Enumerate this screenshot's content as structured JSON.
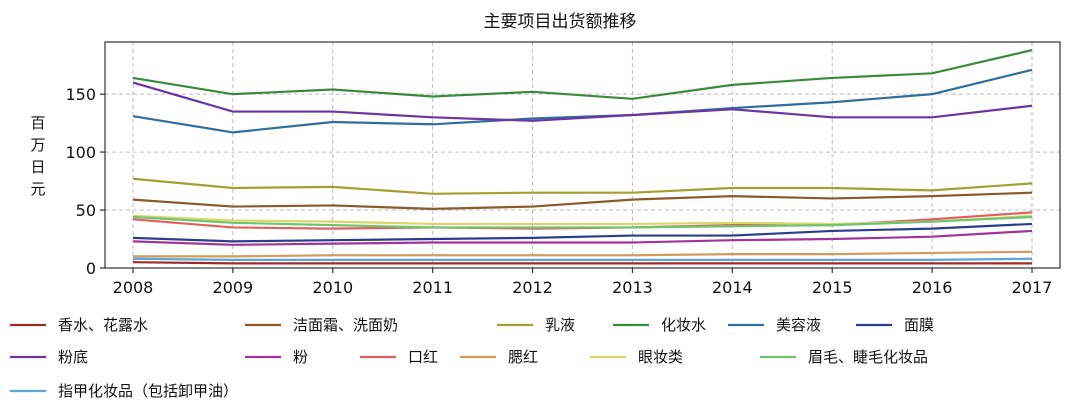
{
  "chart_data": {
    "type": "line",
    "title": "主要项目出货额推移",
    "ylabel": "百万日元",
    "xlabel": "",
    "x": [
      2008,
      2009,
      2010,
      2011,
      2012,
      2013,
      2014,
      2015,
      2016,
      2017
    ],
    "ylim": [
      0,
      195
    ],
    "yticks": [
      0,
      50,
      100,
      150
    ],
    "grid": true,
    "legend_position": "bottom",
    "series": [
      {
        "name": "香水、花露水",
        "color": "#9e2a2b",
        "values": [
          5,
          4,
          4,
          4,
          4,
          4,
          4,
          4,
          4,
          4
        ]
      },
      {
        "name": "洁面霜、洗面奶",
        "color": "#8b5a2b",
        "values": [
          59,
          53,
          54,
          51,
          53,
          59,
          62,
          60,
          62,
          65
        ]
      },
      {
        "name": "乳液",
        "color": "#a3a032",
        "values": [
          77,
          69,
          70,
          64,
          65,
          65,
          69,
          69,
          67,
          73
        ]
      },
      {
        "name": "化妆水",
        "color": "#3a8a3e",
        "values": [
          164,
          150,
          154,
          148,
          152,
          146,
          158,
          164,
          168,
          188
        ]
      },
      {
        "name": "美容液",
        "color": "#2f6f9a",
        "values": [
          131,
          117,
          126,
          124,
          129,
          132,
          138,
          143,
          150,
          171
        ]
      },
      {
        "name": "面膜",
        "color": "#2b3d8f",
        "values": [
          26,
          23,
          24,
          25,
          26,
          28,
          28,
          32,
          34,
          38
        ]
      },
      {
        "name": "粉底",
        "color": "#6b35a3",
        "values": [
          160,
          135,
          135,
          130,
          127,
          132,
          137,
          130,
          130,
          140
        ]
      },
      {
        "name": "粉",
        "color": "#a2339a",
        "values": [
          23,
          20,
          21,
          22,
          22,
          22,
          24,
          25,
          27,
          32
        ]
      },
      {
        "name": "口红",
        "color": "#e06060",
        "values": [
          42,
          35,
          34,
          35,
          34,
          35,
          37,
          37,
          42,
          48
        ]
      },
      {
        "name": "腮红",
        "color": "#d49a5c",
        "values": [
          10,
          10,
          11,
          11,
          11,
          11,
          12,
          12,
          13,
          14
        ]
      },
      {
        "name": "眼妆类",
        "color": "#d9d86a",
        "values": [
          45,
          41,
          40,
          38,
          38,
          38,
          39,
          38,
          40,
          45
        ]
      },
      {
        "name": "眉毛、睫毛化妆品",
        "color": "#6fc46f",
        "values": [
          44,
          39,
          37,
          35,
          35,
          35,
          36,
          37,
          40,
          44
        ]
      },
      {
        "name": "指甲化妆品（包括卸甲油）",
        "color": "#5aa6d6",
        "values": [
          8,
          7,
          7,
          7,
          7,
          7,
          7,
          7,
          7,
          8
        ]
      }
    ]
  }
}
